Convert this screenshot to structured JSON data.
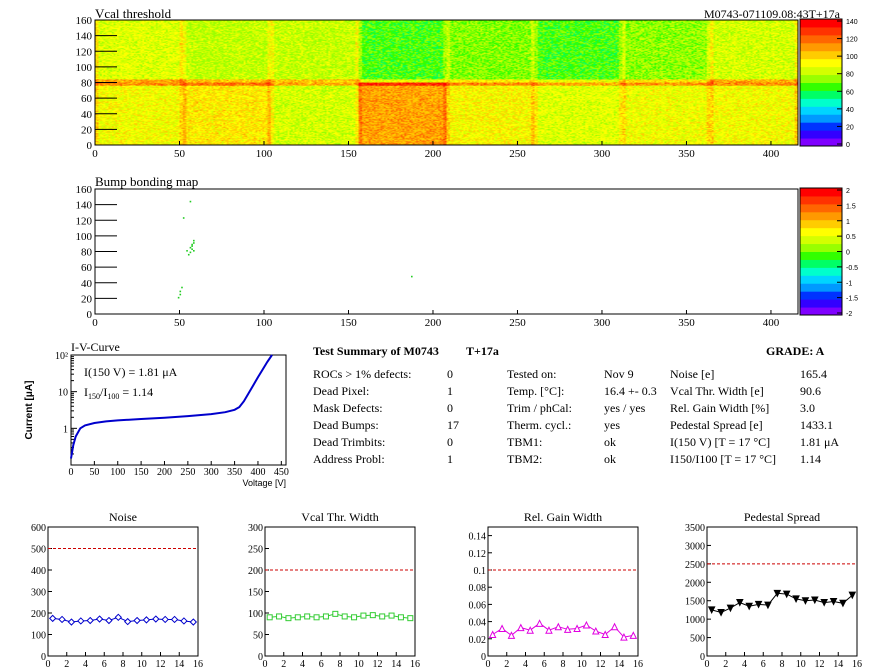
{
  "header": {
    "map_title": "Vcal threshold",
    "module_tag": "M0743-071109.08:43T+17a",
    "bump_title": "Bump bonding map"
  },
  "color_palette": [
    "#7f00ff",
    "#3300ff",
    "#0033ff",
    "#0099ff",
    "#00d4ff",
    "#00ffcc",
    "#00ff66",
    "#33ff00",
    "#99ff00",
    "#d4ff00",
    "#ffff00",
    "#ffcc00",
    "#ff9900",
    "#ff6600",
    "#ff3300",
    "#ff0000"
  ],
  "chart_data": [
    {
      "name": "vcal-threshold-map",
      "type": "heatmap",
      "title": "Vcal threshold",
      "xlim": [
        0,
        416
      ],
      "ylim": [
        0,
        160
      ],
      "x_ticks": [
        0,
        50,
        100,
        150,
        200,
        250,
        300,
        350,
        400
      ],
      "y_ticks": [
        0,
        20,
        40,
        60,
        80,
        100,
        120,
        140,
        160
      ],
      "zlim": [
        0,
        150
      ],
      "z_ticks": [
        0,
        20,
        40,
        60,
        80,
        100,
        120,
        140
      ],
      "roc_mean_upper": [
        92,
        86,
        87,
        72,
        78,
        72,
        80,
        90
      ],
      "roc_mean_lower": [
        96,
        102,
        90,
        115,
        98,
        92,
        95,
        96
      ],
      "grid": false
    },
    {
      "name": "bump-bonding-map",
      "type": "scatter",
      "title": "Bump bonding map",
      "xlim": [
        0,
        416
      ],
      "ylim": [
        0,
        160
      ],
      "x_ticks": [
        0,
        50,
        100,
        150,
        200,
        250,
        300,
        350,
        400
      ],
      "y_ticks": [
        0,
        20,
        40,
        60,
        80,
        100,
        120,
        140,
        160
      ],
      "zlim": [
        -2,
        2
      ],
      "z_ticks": [
        "-2",
        "-1.5",
        "-1",
        "-0.5",
        "0",
        "0.5",
        "1",
        "1.5",
        "2"
      ],
      "points": [
        [
          49,
          20
        ],
        [
          50,
          24
        ],
        [
          50,
          28
        ],
        [
          51,
          33
        ],
        [
          52,
          122
        ],
        [
          56,
          78
        ],
        [
          57,
          82
        ],
        [
          57,
          86
        ],
        [
          58,
          90
        ],
        [
          58,
          93
        ],
        [
          56,
          143
        ],
        [
          55,
          75
        ],
        [
          187,
          47
        ],
        [
          58,
          80
        ],
        [
          54,
          80
        ],
        [
          56,
          84
        ],
        [
          57,
          88
        ]
      ]
    },
    {
      "name": "iv-curve",
      "type": "line",
      "title": "I-V-Curve",
      "xlabel": "Voltage [V]",
      "ylabel": "Current [μA]",
      "xlim": [
        0,
        460
      ],
      "ylim": [
        0.1,
        100
      ],
      "y_scale": "log",
      "x_ticks": [
        0,
        50,
        100,
        150,
        200,
        250,
        300,
        350,
        400,
        450
      ],
      "y_ticks": [
        {
          "v": 1,
          "label": "1"
        },
        {
          "v": 10,
          "label": "10"
        },
        {
          "v": 100,
          "label": "10²"
        }
      ],
      "x": [
        0,
        5,
        10,
        20,
        30,
        50,
        75,
        100,
        150,
        200,
        250,
        300,
        330,
        350,
        360,
        370,
        380,
        390,
        400,
        410,
        420,
        430
      ],
      "y": [
        0.15,
        0.35,
        0.6,
        1.0,
        1.2,
        1.4,
        1.55,
        1.65,
        1.8,
        1.95,
        2.15,
        2.45,
        2.75,
        3.2,
        3.8,
        5.5,
        9,
        15,
        25,
        40,
        65,
        100
      ],
      "annotation_1": "I(150 V) = 1.81 μA",
      "annotation_2_base": "I",
      "annotation_2_sub": "150",
      "annotation_2_sub2": "100",
      "annotation_2_val": "=  1.14"
    },
    {
      "name": "noise",
      "type": "line",
      "title": "Noise",
      "color": "#0000cc",
      "marker": "diamond",
      "xlim": [
        0,
        16
      ],
      "ylim": [
        0,
        600
      ],
      "x_ticks": [
        0,
        2,
        4,
        6,
        8,
        10,
        12,
        14,
        16
      ],
      "y_ticks": [
        0,
        100,
        200,
        300,
        400,
        500,
        600
      ],
      "threshold": 500,
      "x": [
        0.5,
        1.5,
        2.5,
        3.5,
        4.5,
        5.5,
        6.5,
        7.5,
        8.5,
        9.5,
        10.5,
        11.5,
        12.5,
        13.5,
        14.5,
        15.5
      ],
      "y": [
        175,
        170,
        158,
        163,
        165,
        172,
        165,
        180,
        160,
        165,
        168,
        172,
        170,
        170,
        163,
        158
      ]
    },
    {
      "name": "vcal-thr-width",
      "type": "line",
      "title": "Vcal Thr. Width",
      "color": "#33cc33",
      "marker": "square",
      "xlim": [
        0,
        16
      ],
      "ylim": [
        0,
        300
      ],
      "x_ticks": [
        0,
        2,
        4,
        6,
        8,
        10,
        12,
        14,
        16
      ],
      "y_ticks": [
        0,
        50,
        100,
        150,
        200,
        250,
        300
      ],
      "threshold": 200,
      "x": [
        0.5,
        1.5,
        2.5,
        3.5,
        4.5,
        5.5,
        6.5,
        7.5,
        8.5,
        9.5,
        10.5,
        11.5,
        12.5,
        13.5,
        14.5,
        15.5
      ],
      "y": [
        90,
        92,
        88,
        90,
        92,
        90,
        92,
        98,
        92,
        90,
        94,
        95,
        92,
        94,
        90,
        88
      ]
    },
    {
      "name": "rel-gain-width",
      "type": "line",
      "title": "Rel. Gain Width",
      "color": "#e000e0",
      "marker": "triangle",
      "xlim": [
        0,
        16
      ],
      "ylim": [
        0,
        0.15
      ],
      "x_ticks": [
        0,
        2,
        4,
        6,
        8,
        10,
        12,
        14,
        16
      ],
      "y_ticks": [
        0,
        0.02,
        0.04,
        0.06,
        0.08,
        0.1,
        0.12,
        0.14
      ],
      "threshold": 0.1,
      "x": [
        0.5,
        1.5,
        2.5,
        3.5,
        4.5,
        5.5,
        6.5,
        7.5,
        8.5,
        9.5,
        10.5,
        11.5,
        12.5,
        13.5,
        14.5,
        15.5
      ],
      "y": [
        0.025,
        0.032,
        0.024,
        0.033,
        0.03,
        0.038,
        0.03,
        0.034,
        0.031,
        0.032,
        0.036,
        0.029,
        0.025,
        0.034,
        0.022,
        0.024
      ]
    },
    {
      "name": "pedestal-spread",
      "type": "line",
      "title": "Pedestal Spread",
      "color": "#000000",
      "marker": "triangle-down",
      "xlim": [
        0,
        16
      ],
      "ylim": [
        0,
        3500
      ],
      "x_ticks": [
        0,
        2,
        4,
        6,
        8,
        10,
        12,
        14,
        16
      ],
      "y_ticks": [
        0,
        500,
        1000,
        1500,
        2000,
        2500,
        3000,
        3500
      ],
      "threshold": 2500,
      "x": [
        0.5,
        1.5,
        2.5,
        3.5,
        4.5,
        5.5,
        6.5,
        7.5,
        8.5,
        9.5,
        10.5,
        11.5,
        12.5,
        13.5,
        14.5,
        15.5
      ],
      "y": [
        1250,
        1180,
        1300,
        1450,
        1350,
        1400,
        1380,
        1700,
        1680,
        1550,
        1500,
        1520,
        1450,
        1480,
        1430,
        1650
      ]
    }
  ],
  "summary": {
    "title": "Test Summary of M0743",
    "tag": "T+17a",
    "grade": "GRADE:  A",
    "col1": [
      {
        "label": "ROCs > 1% defects:",
        "value": "0"
      },
      {
        "label": "Dead Pixel:",
        "value": "1"
      },
      {
        "label": "Mask Defects:",
        "value": "0"
      },
      {
        "label": "Dead Bumps:",
        "value": "17"
      },
      {
        "label": "Dead Trimbits:",
        "value": "0"
      },
      {
        "label": "Address Probl:",
        "value": "1"
      }
    ],
    "col2": [
      {
        "label": "Tested on:",
        "value": "Nov 9"
      },
      {
        "label": "Temp. [°C]:",
        "value": "16.4 +- 0.3"
      },
      {
        "label": "Trim / phCal:",
        "value": "yes / yes"
      },
      {
        "label": "Therm. cycl.:",
        "value": "yes"
      },
      {
        "label": "TBM1:",
        "value": "ok"
      },
      {
        "label": "TBM2:",
        "value": "ok"
      }
    ],
    "col3": [
      {
        "label": "Noise [e]",
        "value": "165.4"
      },
      {
        "label": "Vcal Thr. Width [e]",
        "value": "90.6"
      },
      {
        "label": "Rel. Gain Width [%]",
        "value": "3.0"
      },
      {
        "label": "Pedestal Spread [e]",
        "value": "1433.1"
      },
      {
        "label": "I(150 V) [T = 17 °C]",
        "value": "1.81 μA"
      },
      {
        "label": "I150/I100  [T = 17 °C]",
        "value": "1.14"
      }
    ]
  }
}
